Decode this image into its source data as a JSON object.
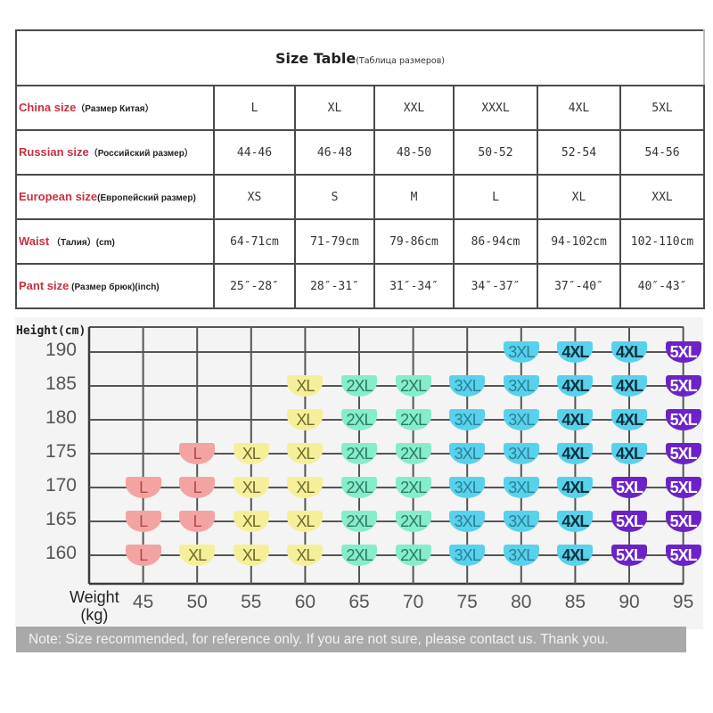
{
  "table": {
    "title": "Size Table",
    "title_sub": "(Таблица размеров)",
    "rows": [
      {
        "label_en": "China size",
        "label_ru": "（Размер Китая）",
        "values": [
          "L",
          "XL",
          "XXL",
          "XXXL",
          "4XL",
          "5XL"
        ]
      },
      {
        "label_en": "Russian size",
        "label_ru": "（Российский размер）",
        "values": [
          "44-46",
          "46-48",
          "48-50",
          "50-52",
          "52-54",
          "54-56"
        ]
      },
      {
        "label_en": "European size",
        "label_ru": "(Европейский размер)",
        "values": [
          "XS",
          "S",
          "M",
          "L",
          "XL",
          "XXL"
        ]
      },
      {
        "label_en": "Waist",
        "label_ru": "  （Талия）(cm)",
        "values": [
          "64-71cm",
          "71-79cm",
          "79-86cm",
          "86-94cm",
          "94-102cm",
          "102-110cm"
        ]
      },
      {
        "label_en": "Pant size",
        "label_ru": "  (Размер брюк)(inch)",
        "values": [
          "25″-28″",
          "28″-31″",
          "31″-34″",
          "34″-37″",
          "37″-40″",
          "40″-43″"
        ]
      }
    ]
  },
  "chart": {
    "ylabel": "Height(cm)",
    "xlabel_line1": "Weight",
    "xlabel_line2": "(kg)",
    "note": "Note: Size recommended, for reference only. If you are not sure, please contact us. Thank you."
  },
  "colors": {
    "L": "#f4a3a3",
    "XL": "#f6ef9a",
    "2XL": "#86edcc",
    "3XL": "#58d2ec",
    "4XL": "#58d2ec",
    "5XL": "#6c22c8",
    "label_red": "#c8303f",
    "note_bg": "#a9a9a9"
  },
  "chart_data": {
    "type": "heatmap",
    "title": "Size recommendation by Height and Weight",
    "xlabel": "Weight (kg)",
    "ylabel": "Height (cm)",
    "x": [
      45,
      50,
      55,
      60,
      65,
      70,
      75,
      80,
      85,
      90,
      95
    ],
    "y": [
      190,
      185,
      180,
      175,
      170,
      165,
      160
    ],
    "grid": true,
    "cells": [
      [
        null,
        null,
        null,
        null,
        null,
        null,
        null,
        "3XL",
        "4XL",
        "4XL",
        "5XL"
      ],
      [
        null,
        null,
        null,
        "XL",
        "2XL",
        "2XL",
        "3XL",
        "3XL",
        "4XL",
        "4XL",
        "5XL"
      ],
      [
        null,
        null,
        null,
        "XL",
        "2XL",
        "2XL",
        "3XL",
        "3XL",
        "4XL",
        "4XL",
        "5XL"
      ],
      [
        null,
        "L",
        "XL",
        "XL",
        "2XL",
        "2XL",
        "3XL",
        "3XL",
        "4XL",
        "4XL",
        "5XL"
      ],
      [
        "L",
        "L",
        "XL",
        "XL",
        "2XL",
        "2XL",
        "3XL",
        "3XL",
        "4XL",
        "5XL",
        "5XL"
      ],
      [
        "L",
        "L",
        "XL",
        "XL",
        "2XL",
        "2XL",
        "3XL",
        "3XL",
        "4XL",
        "5XL",
        "5XL"
      ],
      [
        "L",
        "XL",
        "XL",
        "XL",
        "2XL",
        "2XL",
        "3XL",
        "3XL",
        "4XL",
        "5XL",
        "5XL"
      ]
    ],
    "xlim": [
      40,
      95
    ],
    "ylim": [
      157,
      193
    ]
  }
}
